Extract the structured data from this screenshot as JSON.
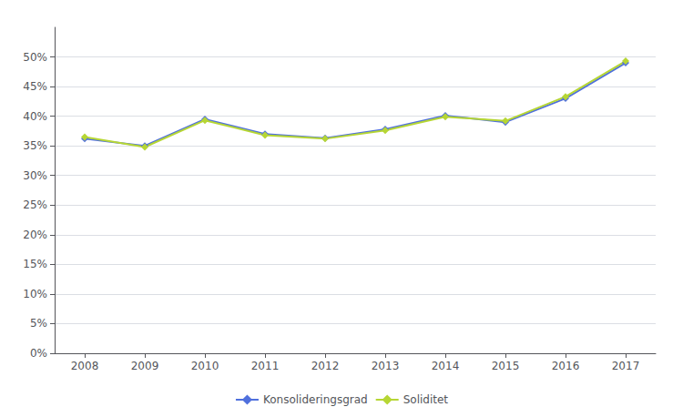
{
  "chart_data": {
    "type": "line",
    "x": [
      2008,
      2009,
      2010,
      2011,
      2012,
      2013,
      2014,
      2015,
      2016,
      2017
    ],
    "series": [
      {
        "name": "Konsolideringsgrad",
        "values": [
          0.362,
          0.35,
          0.395,
          0.37,
          0.363,
          0.378,
          0.401,
          0.39,
          0.43,
          0.49
        ]
      },
      {
        "name": "Soliditet",
        "values": [
          0.365,
          0.348,
          0.393,
          0.368,
          0.362,
          0.376,
          0.399,
          0.392,
          0.433,
          0.493
        ]
      }
    ],
    "xlim": [
      2007.5,
      2017.5
    ],
    "xticks": [
      2008,
      2009,
      2010,
      2011,
      2012,
      2013,
      2014,
      2015,
      2016,
      2017
    ],
    "ylim": [
      0.0,
      0.55
    ],
    "yticks": [
      {
        "value": 0.0,
        "label": "0%"
      },
      {
        "value": 0.05,
        "label": "5%"
      },
      {
        "value": 0.1,
        "label": "10%"
      },
      {
        "value": 0.15,
        "label": "15%"
      },
      {
        "value": 0.2,
        "label": "20%"
      },
      {
        "value": 0.25,
        "label": "25%"
      },
      {
        "value": 0.3,
        "label": "30%"
      },
      {
        "value": 0.35,
        "label": "35%"
      },
      {
        "value": 0.4,
        "label": "40%"
      },
      {
        "value": 0.45,
        "label": "45%"
      },
      {
        "value": 0.5,
        "label": "50%"
      }
    ],
    "grid": true,
    "legend": "bottom",
    "marker": "diamond",
    "line_style": "solid"
  }
}
